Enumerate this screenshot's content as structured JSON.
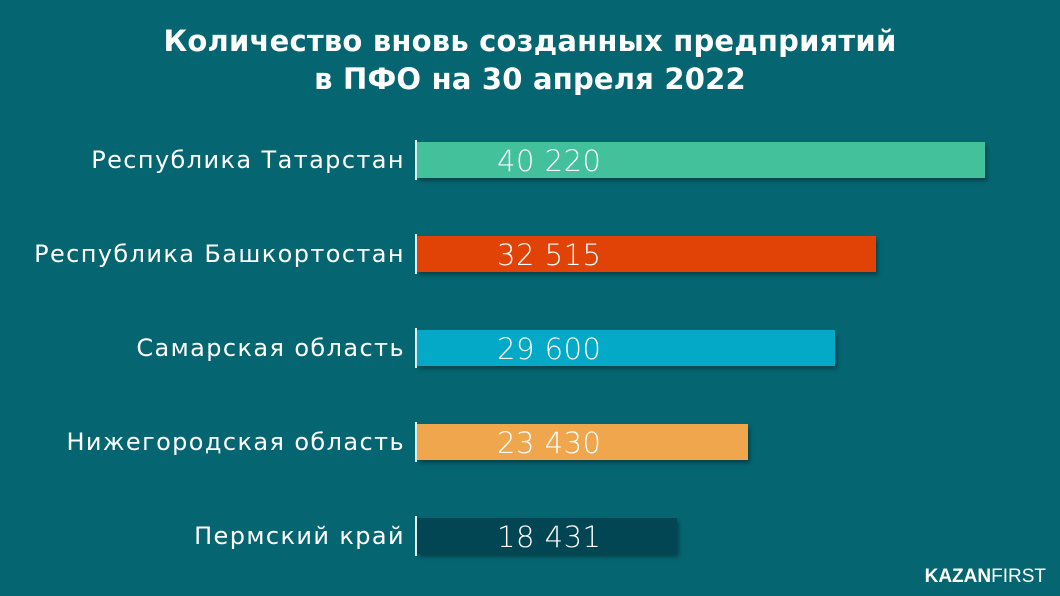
{
  "title": {
    "line1": "Количество вновь созданных предприятий",
    "line2": "в ПФО на 30 апреля 2022"
  },
  "rows": [
    {
      "label": "Республика Татарстан",
      "value_label": "40 220",
      "color": "#43c19a"
    },
    {
      "label": "Республика Башкортостан",
      "value_label": "32 515",
      "color": "#e14307"
    },
    {
      "label": "Самарская область",
      "value_label": "29 600",
      "color": "#03a9c6"
    },
    {
      "label": "Нижегородская область",
      "value_label": "23 430",
      "color": "#f0a64c"
    },
    {
      "label": "Пермский край",
      "value_label": "18 431",
      "color": "#024653"
    }
  ],
  "logo": {
    "bold": "KAZAN",
    "light": "FIRST"
  },
  "colors": {
    "background": "#056672",
    "text": "#ffffff"
  },
  "chart_data": {
    "type": "bar",
    "orientation": "horizontal",
    "title": "Количество вновь созданных предприятий в ПФО на 30 апреля 2022",
    "categories": [
      "Республика Татарстан",
      "Республика Башкортостан",
      "Самарская область",
      "Нижегородская область",
      "Пермский край"
    ],
    "values": [
      40220,
      32515,
      29600,
      23430,
      18431
    ],
    "colors": [
      "#43c19a",
      "#e14307",
      "#03a9c6",
      "#f0a64c",
      "#024653"
    ],
    "xlabel": "",
    "ylabel": "",
    "grid": false,
    "legend": "none",
    "data_labels": true,
    "source_brand": "KAZANFIRST"
  }
}
